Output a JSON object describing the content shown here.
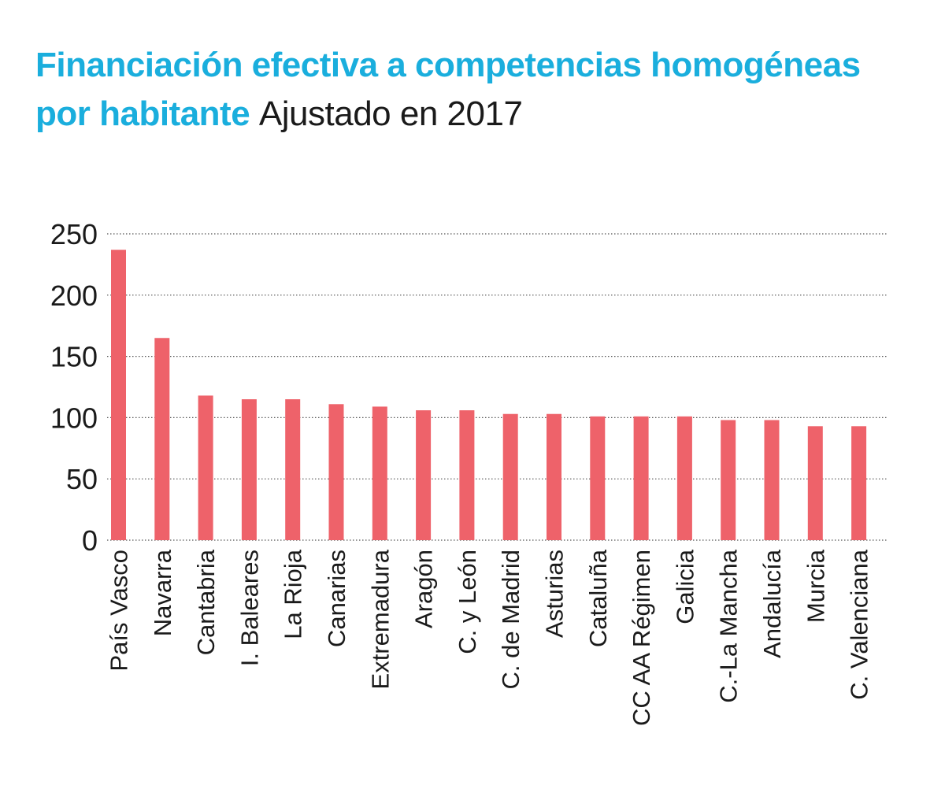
{
  "header": {
    "title_highlight": "Financiación efectiva a competencias homogéneas por habitante",
    "title_rest": "Ajustado en 2017"
  },
  "colors": {
    "bar": "#ee626a",
    "title": "#1aaedd",
    "grid": "#555555"
  },
  "chart_data": {
    "type": "bar",
    "title": "Financiación efectiva a competencias homogéneas por habitante Ajustado en 2017",
    "categories": [
      "País Vasco",
      "Navarra",
      "Cantabria",
      "I. Baleares",
      "La Rioja",
      "Canarias",
      "Extremadura",
      "Aragón",
      "C. y León",
      "C. de Madrid",
      "Asturias",
      "Cataluña",
      "CC AA Régimen",
      "Galicia",
      "C.-La Mancha",
      "Andalucía",
      "Murcia",
      "C. Valenciana"
    ],
    "values": [
      237,
      165,
      118,
      115,
      115,
      111,
      109,
      106,
      106,
      103,
      103,
      101,
      101,
      101,
      98,
      98,
      93,
      93
    ],
    "yticks": [
      0,
      50,
      100,
      150,
      200,
      250
    ],
    "ylim": [
      0,
      250
    ],
    "grid": true,
    "xlabel": "",
    "ylabel": ""
  }
}
